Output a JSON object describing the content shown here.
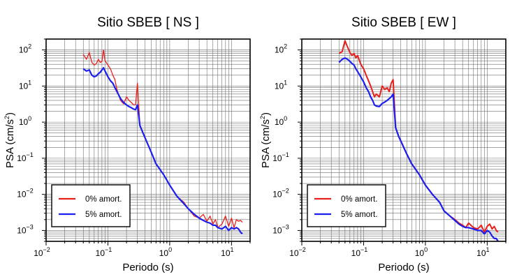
{
  "chart_data": [
    {
      "type": "line",
      "title": "Sitio SBEB [ NS ]",
      "xlabel": "Periodo (s)",
      "ylabel": {
        "base": "PSA (cm/s",
        "sup": "2",
        "end": ")"
      },
      "xscale": "log",
      "yscale": "log",
      "xlim": [
        0.01,
        20
      ],
      "ylim": [
        0.0005,
        200
      ],
      "grid": true,
      "legend_position": "bottom-left",
      "xticks": [
        {
          "base": "10",
          "exp": "−2",
          "value": 0.01
        },
        {
          "base": "10",
          "exp": "−1",
          "value": 0.1
        },
        {
          "base": "10",
          "exp": "0",
          "value": 1
        },
        {
          "base": "10",
          "exp": "1",
          "value": 10
        }
      ],
      "yticks": [
        {
          "base": "10",
          "exp": "−3",
          "value": 0.001
        },
        {
          "base": "10",
          "exp": "−2",
          "value": 0.01
        },
        {
          "base": "10",
          "exp": "−1",
          "value": 0.1
        },
        {
          "base": "10",
          "exp": "0",
          "value": 1
        },
        {
          "base": "10",
          "exp": "1",
          "value": 10
        },
        {
          "base": "10",
          "exp": "2",
          "value": 100
        }
      ],
      "series": [
        {
          "name": "0% amort.",
          "color": "#e8201c",
          "x": [
            0.04,
            0.045,
            0.05,
            0.055,
            0.06,
            0.065,
            0.07,
            0.075,
            0.08,
            0.085,
            0.09,
            0.1,
            0.11,
            0.12,
            0.13,
            0.14,
            0.16,
            0.18,
            0.2,
            0.22,
            0.24,
            0.26,
            0.28,
            0.3,
            0.33,
            0.37,
            0.42,
            0.5,
            0.6,
            0.8,
            1,
            1.3,
            1.7,
            2,
            2.5,
            3,
            3.5,
            4,
            4.5,
            5,
            5.5,
            6,
            7,
            8,
            9,
            10,
            11,
            12,
            13,
            14,
            15
          ],
          "y": [
            75,
            55,
            85,
            45,
            38,
            42,
            55,
            45,
            48,
            100,
            50,
            38,
            30,
            20,
            15,
            8,
            4,
            3.2,
            5,
            4,
            3.5,
            3,
            3,
            12,
            0.8,
            0.5,
            0.3,
            0.15,
            0.07,
            0.035,
            0.018,
            0.009,
            0.006,
            0.004,
            0.0025,
            0.0022,
            0.0028,
            0.0018,
            0.0025,
            0.0015,
            0.002,
            0.0012,
            0.0015,
            0.0025,
            0.0013,
            0.0022,
            0.0012,
            0.002,
            0.0018,
            0.0019,
            0.0017
          ]
        },
        {
          "name": "5% amort.",
          "color": "#1d1ff0",
          "x": [
            0.04,
            0.045,
            0.05,
            0.055,
            0.06,
            0.065,
            0.07,
            0.075,
            0.08,
            0.085,
            0.09,
            0.1,
            0.11,
            0.12,
            0.13,
            0.14,
            0.16,
            0.18,
            0.2,
            0.22,
            0.24,
            0.26,
            0.28,
            0.3,
            0.33,
            0.37,
            0.42,
            0.5,
            0.6,
            0.8,
            1,
            1.3,
            1.7,
            2,
            2.5,
            3,
            3.5,
            4,
            4.5,
            5,
            5.5,
            6,
            7,
            8,
            9,
            10,
            11,
            12,
            13,
            14,
            15
          ],
          "y": [
            30,
            26,
            28,
            20,
            18,
            19,
            22,
            24,
            28,
            32,
            26,
            18,
            14,
            12,
            9,
            7,
            4.5,
            3.5,
            3,
            2.7,
            2.5,
            2.3,
            2.2,
            3,
            0.8,
            0.5,
            0.3,
            0.15,
            0.07,
            0.035,
            0.018,
            0.009,
            0.0055,
            0.004,
            0.0028,
            0.0022,
            0.0019,
            0.0017,
            0.0016,
            0.0014,
            0.0014,
            0.0012,
            0.0011,
            0.0013,
            0.001,
            0.0012,
            0.0011,
            0.0012,
            0.0011,
            0.0009,
            0.0008
          ]
        }
      ]
    },
    {
      "type": "line",
      "title": "Sitio SBEB [ EW ]",
      "xlabel": "Periodo (s)",
      "ylabel": {
        "base": "PSA (cm/s",
        "sup": "2",
        "end": ")"
      },
      "xscale": "log",
      "yscale": "log",
      "xlim": [
        0.01,
        20
      ],
      "ylim": [
        0.0005,
        200
      ],
      "grid": true,
      "legend_position": "bottom-left",
      "xticks": [
        {
          "base": "10",
          "exp": "−2",
          "value": 0.01
        },
        {
          "base": "10",
          "exp": "−1",
          "value": 0.1
        },
        {
          "base": "10",
          "exp": "0",
          "value": 1
        },
        {
          "base": "10",
          "exp": "1",
          "value": 10
        }
      ],
      "yticks": [
        {
          "base": "10",
          "exp": "−3",
          "value": 0.001
        },
        {
          "base": "10",
          "exp": "−2",
          "value": 0.01
        },
        {
          "base": "10",
          "exp": "−1",
          "value": 0.1
        },
        {
          "base": "10",
          "exp": "0",
          "value": 1
        },
        {
          "base": "10",
          "exp": "1",
          "value": 10
        },
        {
          "base": "10",
          "exp": "2",
          "value": 100
        }
      ],
      "series": [
        {
          "name": "0% amort.",
          "color": "#e8201c",
          "x": [
            0.04,
            0.045,
            0.05,
            0.055,
            0.06,
            0.065,
            0.07,
            0.075,
            0.08,
            0.09,
            0.1,
            0.11,
            0.12,
            0.13,
            0.14,
            0.15,
            0.16,
            0.18,
            0.2,
            0.22,
            0.24,
            0.26,
            0.28,
            0.3,
            0.33,
            0.37,
            0.42,
            0.5,
            0.6,
            0.8,
            1,
            1.3,
            1.7,
            2,
            2.5,
            3,
            3.5,
            4,
            4.5,
            5,
            6,
            7,
            8,
            9,
            10,
            11,
            12,
            13,
            14,
            15
          ],
          "y": [
            80,
            90,
            180,
            120,
            85,
            70,
            80,
            60,
            70,
            40,
            30,
            20,
            14,
            10,
            7,
            5,
            6,
            5,
            10,
            8,
            9,
            7,
            12,
            15,
            0.7,
            0.4,
            0.25,
            0.13,
            0.07,
            0.035,
            0.018,
            0.01,
            0.006,
            0.0035,
            0.0025,
            0.002,
            0.0016,
            0.0014,
            0.0012,
            0.0016,
            0.0012,
            0.0011,
            0.0014,
            0.0009,
            0.0013,
            0.0015,
            0.0011,
            0.0013,
            0.001,
            0.0009
          ]
        },
        {
          "name": "5% amort.",
          "color": "#1d1ff0",
          "x": [
            0.04,
            0.045,
            0.05,
            0.055,
            0.06,
            0.065,
            0.07,
            0.075,
            0.08,
            0.09,
            0.1,
            0.11,
            0.12,
            0.13,
            0.14,
            0.15,
            0.16,
            0.18,
            0.2,
            0.22,
            0.24,
            0.26,
            0.28,
            0.3,
            0.33,
            0.37,
            0.42,
            0.5,
            0.6,
            0.8,
            1,
            1.3,
            1.7,
            2,
            2.5,
            3,
            3.5,
            4,
            4.5,
            5,
            6,
            7,
            8,
            9,
            10,
            11,
            12,
            13,
            14,
            15
          ],
          "y": [
            45,
            55,
            60,
            55,
            48,
            42,
            38,
            30,
            25,
            18,
            13,
            9,
            7,
            5,
            4,
            3,
            2.8,
            2.7,
            3.3,
            3.6,
            4,
            4.5,
            5,
            6,
            0.7,
            0.4,
            0.25,
            0.13,
            0.07,
            0.035,
            0.018,
            0.01,
            0.006,
            0.0035,
            0.0025,
            0.0019,
            0.0015,
            0.0013,
            0.0012,
            0.0012,
            0.0011,
            0.001,
            0.001,
            0.0008,
            0.001,
            0.0009,
            0.0007,
            0.0006,
            0.0006,
            0.0005
          ]
        }
      ]
    }
  ]
}
